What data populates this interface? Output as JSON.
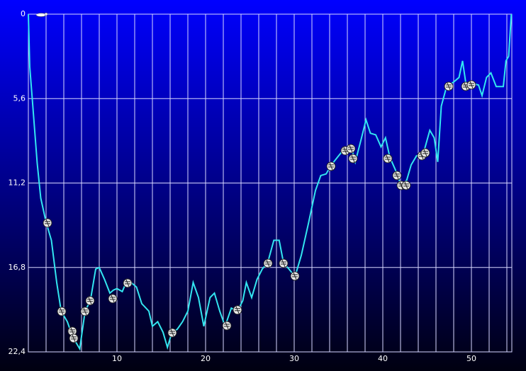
{
  "chart_data": {
    "type": "line",
    "x": [
      0,
      0.16,
      0.5,
      1.0,
      1.4,
      2.0,
      2.6,
      3.2,
      3.7,
      4.4,
      5.0,
      5.8,
      6.4,
      7.0,
      7.6,
      8.0,
      8.6,
      9.2,
      9.6,
      10.0,
      10.6,
      11.1,
      11.6,
      12.2,
      12.8,
      13.6,
      14.0,
      14.6,
      15.2,
      15.7,
      16.2,
      16.8,
      17.4,
      18.0,
      18.6,
      19.2,
      19.8,
      20.5,
      21.0,
      21.6,
      22.2,
      22.9,
      23.6,
      24.2,
      24.6,
      25.2,
      25.8,
      26.4,
      27.0,
      27.7,
      28.3,
      28.8,
      29.4,
      30.1,
      30.8,
      31.6,
      32.4,
      33.0,
      33.6,
      34.2,
      35.0,
      35.7,
      36.4,
      36.9,
      37.6,
      38.1,
      38.6,
      39.2,
      39.8,
      40.3,
      40.8,
      41.4,
      42.1,
      42.7,
      43.2,
      43.8,
      44.6,
      45.3,
      45.8,
      46.2,
      46.6,
      47.2,
      48.0,
      48.6,
      49.0,
      49.4,
      50.2,
      50.8,
      51.2,
      51.7,
      52.2,
      52.8,
      53.6,
      53.9,
      54.2,
      54.5
    ],
    "series": [
      {
        "color": "#33e6f0",
        "values": [
          0,
          3.5,
          6.1,
          9.9,
          12.2,
          13.8,
          15.0,
          17.8,
          19.7,
          20.4,
          21.4,
          22.2,
          19.7,
          19.0,
          16.9,
          16.8,
          17.6,
          18.5,
          18.3,
          18.2,
          18.4,
          17.7,
          17.8,
          18.1,
          19.2,
          19.7,
          20.7,
          20.4,
          21.1,
          22.1,
          21.1,
          20.9,
          20.4,
          19.7,
          17.8,
          18.8,
          20.7,
          18.8,
          18.5,
          19.7,
          20.7,
          19.5,
          19.7,
          19.0,
          17.8,
          18.8,
          17.6,
          16.9,
          16.5,
          15.0,
          15.0,
          16.5,
          16.9,
          17.4,
          16.0,
          13.9,
          11.7,
          10.7,
          10.6,
          10.0,
          9.4,
          8.9,
          8.7,
          9.8,
          8.2,
          7.0,
          7.9,
          8.0,
          8.8,
          8.2,
          9.5,
          10.3,
          11.4,
          11.0,
          10.0,
          9.4,
          9.2,
          7.7,
          8.2,
          9.8,
          6.1,
          4.8,
          4.5,
          4.2,
          3.1,
          4.7,
          4.6,
          4.7,
          5.4,
          4.2,
          3.9,
          4.8,
          4.8,
          3.1,
          2.8,
          0
        ]
      }
    ],
    "markers": {
      "x": [
        2.16,
        3.76,
        4.96,
        5.12,
        6.4,
        6.96,
        9.52,
        11.2,
        16.24,
        22.4,
        23.6,
        27.04,
        28.8,
        30.08,
        34.16,
        35.76,
        36.4,
        36.64,
        40.56,
        41.6,
        42.08,
        42.64,
        44.4,
        44.8,
        47.44,
        49.36,
        50.0
      ],
      "values": [
        13.85,
        19.72,
        21.03,
        21.5,
        19.72,
        19.01,
        18.87,
        17.84,
        21.13,
        20.66,
        19.62,
        16.53,
        16.53,
        17.37,
        10.09,
        9.06,
        8.92,
        9.58,
        9.58,
        10.7,
        11.36,
        11.36,
        9.39,
        9.2,
        4.79,
        4.79,
        4.69
      ]
    },
    "xlim": [
      0,
      54.56
    ],
    "ylim": [
      0,
      22.4
    ],
    "y_inverted": true,
    "xticks": [
      10,
      20,
      30,
      40,
      50
    ],
    "xgrid": [
      2,
      4,
      6,
      8,
      10,
      12,
      14,
      16,
      18,
      20,
      22,
      24,
      26,
      28,
      30,
      32,
      34,
      36,
      38,
      40,
      42,
      44,
      46,
      48,
      50,
      52,
      54
    ],
    "yticks": [
      0,
      {
        "value": 5.6,
        "label": "5,6"
      },
      {
        "value": 11.2,
        "label": "11,2"
      },
      {
        "value": 16.8,
        "label": "16,8"
      },
      {
        "value": 22.4,
        "label": "22,4"
      }
    ],
    "grid": true
  }
}
